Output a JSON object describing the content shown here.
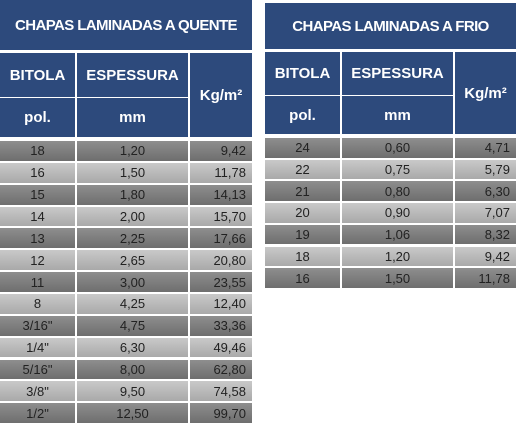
{
  "tables": [
    {
      "title": "CHAPAS LAMINADAS A QUENTE",
      "headers": [
        "BITOLA",
        "ESPESSURA",
        "Kg/m²"
      ],
      "subheaders": [
        "pol.",
        "mm"
      ],
      "rows": [
        [
          "18",
          "1,20",
          "9,42"
        ],
        [
          "16",
          "1,50",
          "11,78"
        ],
        [
          "15",
          "1,80",
          "14,13"
        ],
        [
          "14",
          "2,00",
          "15,70"
        ],
        [
          "13",
          "2,25",
          "17,66"
        ],
        [
          "12",
          "2,65",
          "20,80"
        ],
        [
          "11",
          "3,00",
          "23,55"
        ],
        [
          "8",
          "4,25",
          "12,40"
        ],
        [
          "3/16\"",
          "4,75",
          "33,36"
        ],
        [
          "1/4\"",
          "6,30",
          "49,46"
        ],
        [
          "5/16\"",
          "8,00",
          "62,80"
        ],
        [
          "3/8\"",
          "9,50",
          "74,58"
        ],
        [
          "1/2\"",
          "12,50",
          "99,70"
        ]
      ]
    },
    {
      "title": "CHAPAS LAMINADAS A FRIO",
      "headers": [
        "BITOLA",
        "ESPESSURA",
        "Kg/m²"
      ],
      "subheaders": [
        "pol.",
        "mm"
      ],
      "rows": [
        [
          "24",
          "0,60",
          "4,71"
        ],
        [
          "22",
          "0,75",
          "5,79"
        ],
        [
          "21",
          "0,80",
          "6,30"
        ],
        [
          "20",
          "0,90",
          "7,07"
        ],
        [
          "19",
          "1,06",
          "8,32"
        ],
        [
          "18",
          "1,20",
          "9,42"
        ],
        [
          "16",
          "1,50",
          "11,78"
        ]
      ]
    }
  ]
}
